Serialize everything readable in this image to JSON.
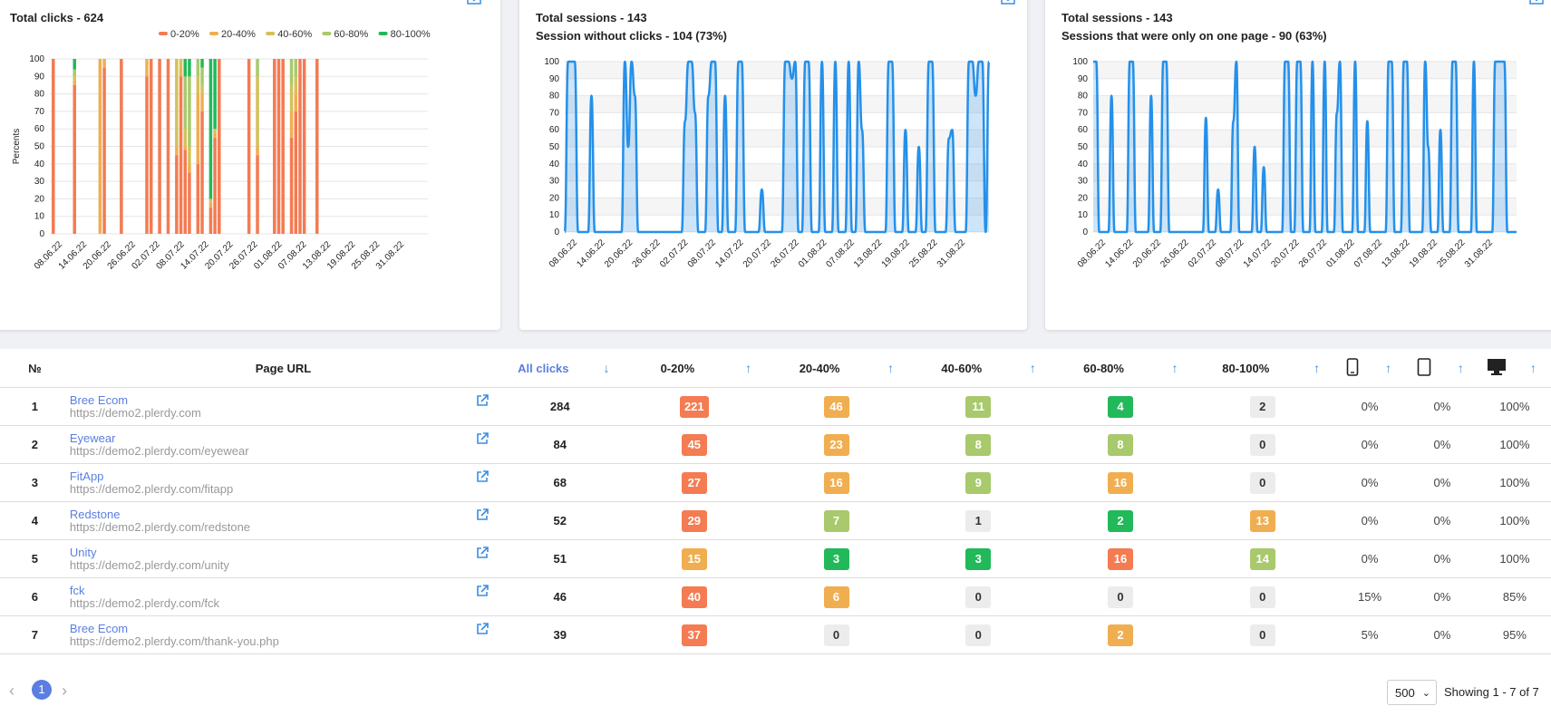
{
  "cards": [
    {
      "lines": [
        "Total clicks - 624"
      ]
    },
    {
      "lines": [
        "Total sessions - 143",
        "Session without clicks - 104 (73%)"
      ]
    },
    {
      "lines": [
        "Total sessions - 143",
        "Sessions that were only on one page - 90 (63%)"
      ]
    }
  ],
  "chart_data": [
    {
      "type": "bar",
      "stacked": true,
      "title": "Total clicks - 624",
      "ylabel": "Percents",
      "ylim": [
        0,
        100
      ],
      "yticks": [
        "0",
        "10",
        "20",
        "30",
        "40",
        "50",
        "60",
        "70",
        "80",
        "90",
        "100"
      ],
      "xtick_labels": [
        "08.06.22",
        "14.06.22",
        "20.06.22",
        "26.06.22",
        "02.07.22",
        "08.07.22",
        "14.07.22",
        "20.07.22",
        "26.07.22",
        "01.08.22",
        "07.08.22",
        "13.08.22",
        "19.08.22",
        "25.08.22",
        "31.08.22"
      ],
      "legend": [
        "0-20%",
        "20-40%",
        "40-60%",
        "60-80%",
        "80-100%"
      ],
      "colors": [
        "#f47b52",
        "#f0ae50",
        "#d4c15a",
        "#a8c96c",
        "#22b95a"
      ],
      "bars": [
        {
          "x": 0,
          "values": [
            100,
            0,
            0,
            0,
            0
          ]
        },
        {
          "x": 5,
          "values": [
            85,
            3,
            2,
            4,
            6
          ]
        },
        {
          "x": 11,
          "values": [
            0,
            100,
            0,
            0,
            0
          ]
        },
        {
          "x": 12,
          "values": [
            95,
            5,
            0,
            0,
            0
          ]
        },
        {
          "x": 16,
          "values": [
            100,
            0,
            0,
            0,
            0
          ]
        },
        {
          "x": 22,
          "values": [
            90,
            10,
            0,
            0,
            0
          ]
        },
        {
          "x": 23,
          "values": [
            100,
            0,
            0,
            0,
            0
          ]
        },
        {
          "x": 25,
          "values": [
            100,
            0,
            0,
            0,
            0
          ]
        },
        {
          "x": 27,
          "values": [
            100,
            0,
            0,
            0,
            0
          ]
        },
        {
          "x": 29,
          "values": [
            45,
            5,
            50,
            0,
            0
          ]
        },
        {
          "x": 30,
          "values": [
            90,
            5,
            5,
            0,
            0
          ]
        },
        {
          "x": 31,
          "values": [
            48,
            2,
            10,
            30,
            10
          ]
        },
        {
          "x": 32,
          "values": [
            35,
            5,
            10,
            40,
            10
          ]
        },
        {
          "x": 34,
          "values": [
            40,
            40,
            10,
            10,
            0
          ]
        },
        {
          "x": 35,
          "values": [
            70,
            10,
            5,
            10,
            5
          ]
        },
        {
          "x": 37,
          "values": [
            15,
            3,
            2,
            0,
            80
          ]
        },
        {
          "x": 38,
          "values": [
            55,
            3,
            2,
            0,
            40
          ]
        },
        {
          "x": 39,
          "values": [
            100,
            0,
            0,
            0,
            0
          ]
        },
        {
          "x": 46,
          "values": [
            100,
            0,
            0,
            0,
            0
          ]
        },
        {
          "x": 48,
          "values": [
            45,
            5,
            40,
            10,
            0
          ]
        },
        {
          "x": 52,
          "values": [
            100,
            0,
            0,
            0,
            0
          ]
        },
        {
          "x": 53,
          "values": [
            100,
            0,
            0,
            0,
            0
          ]
        },
        {
          "x": 54,
          "values": [
            100,
            0,
            0,
            0,
            0
          ]
        },
        {
          "x": 56,
          "values": [
            55,
            15,
            15,
            15,
            0
          ]
        },
        {
          "x": 57,
          "values": [
            70,
            10,
            10,
            10,
            0
          ]
        },
        {
          "x": 58,
          "values": [
            100,
            0,
            0,
            0,
            0
          ]
        },
        {
          "x": 59,
          "values": [
            100,
            0,
            0,
            0,
            0
          ]
        },
        {
          "x": 62,
          "values": [
            100,
            0,
            0,
            0,
            0
          ]
        }
      ],
      "x_count": 88
    },
    {
      "type": "area",
      "title": "Total sessions - 143",
      "subtitle": "Session without clicks - 104 (73%)",
      "ylim": [
        0,
        100
      ],
      "yticks": [
        "0",
        "10",
        "20",
        "30",
        "40",
        "50",
        "60",
        "70",
        "80",
        "90",
        "100"
      ],
      "xtick_labels": [
        "08.06.22",
        "14.06.22",
        "20.06.22",
        "26.06.22",
        "02.07.22",
        "08.07.22",
        "14.07.22",
        "20.07.22",
        "26.07.22",
        "01.08.22",
        "07.08.22",
        "13.08.22",
        "19.08.22",
        "25.08.22",
        "31.08.22"
      ],
      "values": [
        0,
        100,
        100,
        100,
        0,
        0,
        0,
        0,
        80,
        0,
        0,
        0,
        0,
        0,
        0,
        0,
        0,
        0,
        100,
        50,
        100,
        80,
        0,
        0,
        0,
        0,
        0,
        0,
        0,
        0,
        0,
        0,
        0,
        0,
        0,
        0,
        65,
        100,
        100,
        70,
        0,
        0,
        0,
        80,
        100,
        100,
        0,
        0,
        80,
        0,
        0,
        0,
        100,
        100,
        0,
        0,
        0,
        0,
        0,
        25,
        0,
        0,
        0,
        0,
        0,
        0,
        100,
        100,
        90,
        100,
        0,
        0,
        100,
        100,
        0,
        0,
        0,
        100,
        0,
        0,
        0,
        100,
        0,
        0,
        0,
        100,
        0,
        0,
        100,
        60,
        0,
        0,
        0,
        0,
        0,
        0,
        0,
        100,
        100,
        0,
        0,
        0,
        60,
        0,
        0,
        0,
        50,
        0,
        0,
        100,
        100,
        0,
        0,
        0,
        0,
        55,
        60,
        0,
        0,
        0,
        0,
        100,
        100,
        80,
        100,
        100,
        0,
        100
      ]
    },
    {
      "type": "area",
      "title": "Total sessions - 143",
      "subtitle": "Sessions that were only on one page - 90 (63%)",
      "ylim": [
        0,
        100
      ],
      "yticks": [
        "0",
        "10",
        "20",
        "30",
        "40",
        "50",
        "60",
        "70",
        "80",
        "90",
        "100"
      ],
      "xtick_labels": [
        "08.06.22",
        "14.06.22",
        "20.06.22",
        "26.06.22",
        "02.07.22",
        "08.07.22",
        "14.07.22",
        "20.07.22",
        "26.07.22",
        "01.08.22",
        "07.08.22",
        "13.08.22",
        "19.08.22",
        "25.08.22",
        "31.08.22"
      ],
      "values": [
        100,
        100,
        0,
        0,
        0,
        0,
        80,
        0,
        0,
        0,
        0,
        0,
        100,
        100,
        0,
        0,
        0,
        0,
        0,
        80,
        0,
        0,
        0,
        100,
        100,
        0,
        0,
        0,
        0,
        0,
        0,
        0,
        0,
        0,
        0,
        0,
        0,
        67,
        0,
        0,
        0,
        25,
        0,
        0,
        0,
        0,
        65,
        100,
        0,
        0,
        0,
        0,
        0,
        50,
        0,
        0,
        38,
        0,
        0,
        0,
        0,
        0,
        0,
        100,
        100,
        0,
        0,
        100,
        100,
        0,
        0,
        0,
        100,
        0,
        0,
        0,
        100,
        0,
        0,
        0,
        70,
        100,
        0,
        0,
        0,
        0,
        100,
        0,
        0,
        0,
        65,
        0,
        0,
        0,
        0,
        0,
        0,
        100,
        100,
        0,
        0,
        0,
        100,
        100,
        0,
        0,
        0,
        0,
        0,
        100,
        50,
        0,
        0,
        0,
        60,
        0,
        0,
        0,
        100,
        100,
        0,
        0,
        0,
        0,
        0,
        100,
        0,
        0,
        0,
        0,
        0,
        0,
        100,
        100,
        100,
        100,
        0,
        0,
        0,
        0
      ]
    }
  ],
  "table": {
    "headers": {
      "no": "№",
      "url": "Page URL",
      "all": "All clicks",
      "c1": "0-20%",
      "c2": "20-40%",
      "c3": "40-60%",
      "c4": "60-80%",
      "c5": "80-100%"
    },
    "rows": [
      {
        "no": "1",
        "name": "Bree Ecom",
        "url": "https://demo2.plerdy.com",
        "all": "284",
        "b": [
          [
            "221",
            "red"
          ],
          [
            "46",
            "orange"
          ],
          [
            "11",
            "lgreen"
          ],
          [
            "4",
            "green"
          ],
          [
            "2",
            "gray"
          ]
        ],
        "m": "0%",
        "t": "0%",
        "d": "100%"
      },
      {
        "no": "2",
        "name": "Eyewear",
        "url": "https://demo2.plerdy.com/eyewear",
        "all": "84",
        "b": [
          [
            "45",
            "red"
          ],
          [
            "23",
            "orange"
          ],
          [
            "8",
            "lgreen"
          ],
          [
            "8",
            "lgreen"
          ],
          [
            "0",
            "gray"
          ]
        ],
        "m": "0%",
        "t": "0%",
        "d": "100%"
      },
      {
        "no": "3",
        "name": "FitApp",
        "url": "https://demo2.plerdy.com/fitapp",
        "all": "68",
        "b": [
          [
            "27",
            "red"
          ],
          [
            "16",
            "orange"
          ],
          [
            "9",
            "lgreen"
          ],
          [
            "16",
            "orange"
          ],
          [
            "0",
            "gray"
          ]
        ],
        "m": "0%",
        "t": "0%",
        "d": "100%"
      },
      {
        "no": "4",
        "name": "Redstone",
        "url": "https://demo2.plerdy.com/redstone",
        "all": "52",
        "b": [
          [
            "29",
            "red"
          ],
          [
            "7",
            "lgreen"
          ],
          [
            "1",
            "gray"
          ],
          [
            "2",
            "green"
          ],
          [
            "13",
            "orange"
          ]
        ],
        "m": "0%",
        "t": "0%",
        "d": "100%"
      },
      {
        "no": "5",
        "name": "Unity",
        "url": "https://demo2.plerdy.com/unity",
        "all": "51",
        "b": [
          [
            "15",
            "orange"
          ],
          [
            "3",
            "green"
          ],
          [
            "3",
            "green"
          ],
          [
            "16",
            "red"
          ],
          [
            "14",
            "lgreen"
          ]
        ],
        "m": "0%",
        "t": "0%",
        "d": "100%"
      },
      {
        "no": "6",
        "name": "fck",
        "url": "https://demo2.plerdy.com/fck",
        "all": "46",
        "b": [
          [
            "40",
            "red"
          ],
          [
            "6",
            "orange"
          ],
          [
            "0",
            "gray"
          ],
          [
            "0",
            "gray"
          ],
          [
            "0",
            "gray"
          ]
        ],
        "m": "15%",
        "t": "0%",
        "d": "85%"
      },
      {
        "no": "7",
        "name": "Bree Ecom",
        "url": "https://demo2.plerdy.com/thank-you.php",
        "all": "39",
        "b": [
          [
            "37",
            "red"
          ],
          [
            "0",
            "gray"
          ],
          [
            "0",
            "gray"
          ],
          [
            "2",
            "orange"
          ],
          [
            "0",
            "gray"
          ]
        ],
        "m": "5%",
        "t": "0%",
        "d": "95%"
      }
    ]
  },
  "pagination": {
    "page": "1",
    "per_page": "500",
    "showing": "Showing 1 - 7 of 7"
  }
}
